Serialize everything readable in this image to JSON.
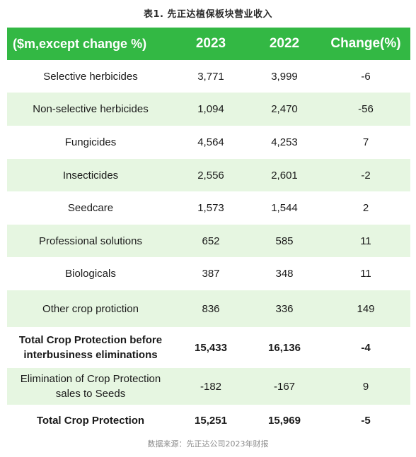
{
  "title": "表1. 先正达植保板块营业收入",
  "header": {
    "label": "($m,except change %)",
    "col_2023": "2023",
    "col_2022": "2022",
    "col_change": "Change(%)"
  },
  "rows": [
    {
      "label": "Selective herbicides",
      "v2023": "3,771",
      "v2022": "3,999",
      "change": "-6"
    },
    {
      "label": "Non-selective herbicides",
      "v2023": "1,094",
      "v2022": "2,470",
      "change": "-56"
    },
    {
      "label": "Fungicides",
      "v2023": "4,564",
      "v2022": "4,253",
      "change": "7"
    },
    {
      "label": "Insecticides",
      "v2023": "2,556",
      "v2022": "2,601",
      "change": "-2"
    },
    {
      "label": "Seedcare",
      "v2023": "1,573",
      "v2022": "1,544",
      "change": "2"
    },
    {
      "label": "Professional solutions",
      "v2023": "652",
      "v2022": "585",
      "change": "11"
    },
    {
      "label": "Biologicals",
      "v2023": "387",
      "v2022": "348",
      "change": "11"
    },
    {
      "label": "Other crop protiction",
      "v2023": "836",
      "v2022": "336",
      "change": "149"
    },
    {
      "label": "Total Crop Protection before interbusiness eliminations",
      "v2023": "15,433",
      "v2022": "16,136",
      "change": "-4"
    },
    {
      "label": "Elimination of Crop Protection sales to Seeds",
      "v2023": "-182",
      "v2022": "-167",
      "change": "9"
    },
    {
      "label": "Total Crop Protection",
      "v2023": "15,251",
      "v2022": "15,969",
      "change": "-5"
    }
  ],
  "source": "数据来源：先正达公司2023年财报",
  "colors": {
    "header_bg": "#33b844",
    "header_text": "#ffffff",
    "stripe_bg": "#e6f6e1",
    "body_text": "#1a1a1a",
    "source_text": "#8a8a8a"
  }
}
